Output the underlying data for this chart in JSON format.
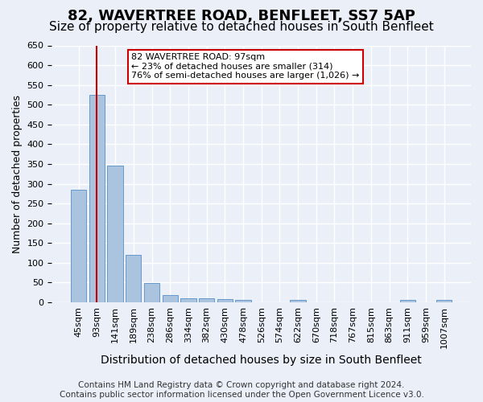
{
  "title": "82, WAVERTREE ROAD, BENFLEET, SS7 5AP",
  "subtitle": "Size of property relative to detached houses in South Benfleet",
  "xlabel": "Distribution of detached houses by size in South Benfleet",
  "ylabel": "Number of detached properties",
  "bar_values": [
    284,
    524,
    345,
    120,
    48,
    18,
    10,
    11,
    9,
    5,
    0,
    0,
    5,
    0,
    0,
    0,
    0,
    0,
    5,
    0,
    5
  ],
  "bar_labels": [
    "45sqm",
    "93sqm",
    "141sqm",
    "189sqm",
    "238sqm",
    "286sqm",
    "334sqm",
    "382sqm",
    "430sqm",
    "478sqm",
    "526sqm",
    "574sqm",
    "622sqm",
    "670sqm",
    "718sqm",
    "767sqm",
    "815sqm",
    "863sqm",
    "911sqm",
    "959sqm",
    "1007sqm"
  ],
  "bar_color": "#aac4e0",
  "bar_edgecolor": "#6699cc",
  "vline_x": 1,
  "vline_color": "#cc0000",
  "annotation_text": "82 WAVERTREE ROAD: 97sqm\n← 23% of detached houses are smaller (314)\n76% of semi-detached houses are larger (1,026) →",
  "annotation_box_edgecolor": "#cc0000",
  "ylim": [
    0,
    650
  ],
  "yticks": [
    0,
    50,
    100,
    150,
    200,
    250,
    300,
    350,
    400,
    450,
    500,
    550,
    600,
    650
  ],
  "footer": "Contains HM Land Registry data © Crown copyright and database right 2024.\nContains public sector information licensed under the Open Government Licence v3.0.",
  "background_color": "#eaeff8",
  "plot_background_color": "#eaeff8",
  "grid_color": "#ffffff",
  "title_fontsize": 13,
  "subtitle_fontsize": 11,
  "xlabel_fontsize": 10,
  "ylabel_fontsize": 9,
  "tick_fontsize": 8,
  "footer_fontsize": 7.5
}
